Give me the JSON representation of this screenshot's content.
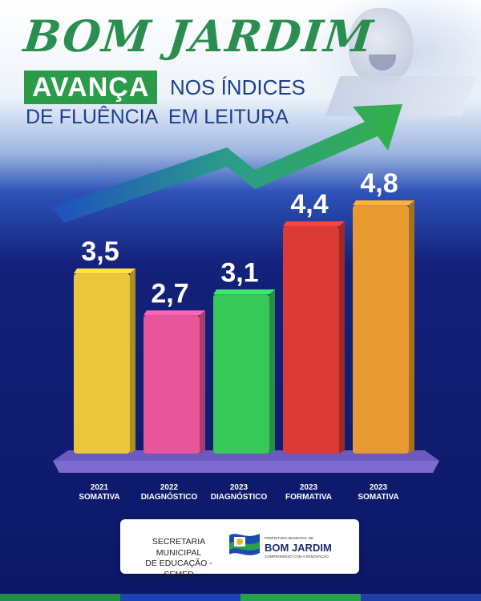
{
  "header": {
    "brand": "BOM JARDIM",
    "tagline_highlight": "AVANÇA",
    "tagline_rest": "NOS ÍNDICES",
    "tagline_line2": "DE FLUÊNCIA  EM LEITURA"
  },
  "chart_data": {
    "type": "bar",
    "categories": [
      [
        "2021",
        "SOMATIVA"
      ],
      [
        "2022",
        "DIAGNÓSTICO"
      ],
      [
        "2023",
        "DIAGNÓSTICO"
      ],
      [
        "2023",
        "FORMATIVA"
      ],
      [
        "2023",
        "SOMATIVA"
      ]
    ],
    "values": [
      3.5,
      2.7,
      3.1,
      4.4,
      4.8
    ],
    "data_labels": [
      "3,5",
      "2,7",
      "3,1",
      "4,4",
      "4,8"
    ],
    "bar_colors": [
      "#e9c63a",
      "#e8569a",
      "#36c95a",
      "#dc3a35",
      "#e89a32"
    ],
    "ylim": [
      0,
      5
    ],
    "title": "",
    "xlabel": "",
    "ylabel": "",
    "trend_arrow_color": "#2fa84a"
  },
  "footer": {
    "secretariat_line1": "SECRETARIA MUNICIPAL",
    "secretariat_line2": "DE EDUCAÇÃO - SEMED",
    "logo_small": "PREFEITURA MUNICIPAL DE",
    "logo_big": "BOM JARDIM",
    "logo_tagline": "COMPROMISSO COM A RENOVAÇÃO"
  },
  "colors": {
    "brand_green": "#2a8e4f",
    "text_blue": "#1a3f8f",
    "background_navy": "#0f1c6e"
  }
}
